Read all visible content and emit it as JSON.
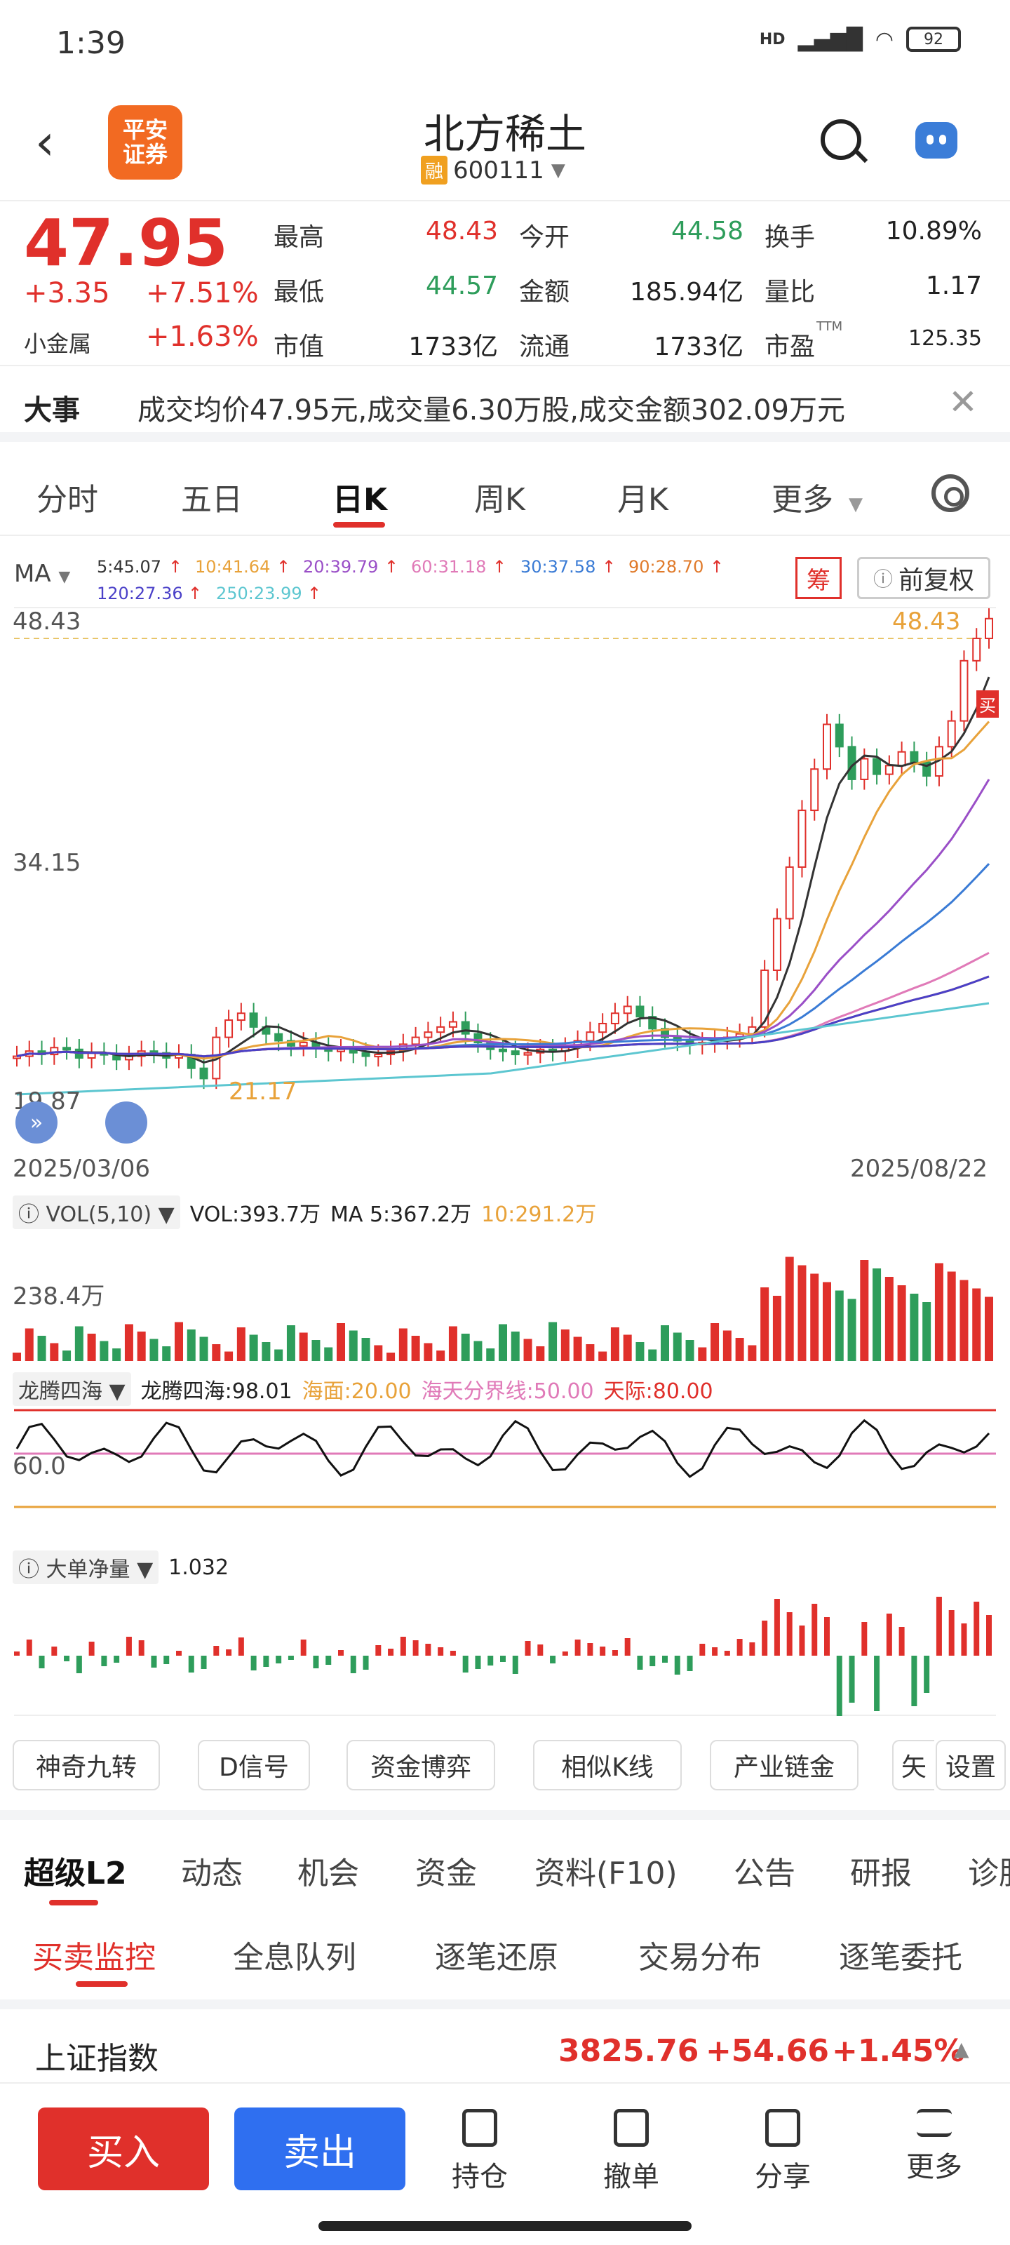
{
  "status": {
    "time": "1:39",
    "battery": "92",
    "signal_label": "HD"
  },
  "header": {
    "logo_line1": "平安",
    "logo_line2": "证券",
    "stock_name": "北方稀土",
    "margin_tag": "融",
    "code": "600111"
  },
  "quote": {
    "price": "47.95",
    "change": "+3.35",
    "change_pct": "+7.51%",
    "sector_name": "小金属",
    "sector_pct": "+1.63%",
    "fields": [
      {
        "label": "最高",
        "value": "48.43",
        "color": "red"
      },
      {
        "label": "今开",
        "value": "44.58",
        "color": "green"
      },
      {
        "label": "换手",
        "value": "10.89%",
        "color": "dark"
      },
      {
        "label": "最低",
        "value": "44.57",
        "color": "green"
      },
      {
        "label": "金额",
        "value": "185.94亿",
        "color": "dark"
      },
      {
        "label": "量比",
        "value": "1.17",
        "color": "dark"
      },
      {
        "label": "市值",
        "value": "1733亿",
        "color": "dark"
      },
      {
        "label": "流通",
        "value": "1733亿",
        "color": "dark"
      },
      {
        "label": "市盈",
        "value": "125.35",
        "color": "dark"
      }
    ],
    "pe_sup": "TTM"
  },
  "events": {
    "tag": "大事",
    "text": "成交均价47.95元,成交量6.30万股,成交金额302.09万元"
  },
  "ktabs": [
    "分时",
    "五日",
    "日K",
    "周K",
    "月K",
    "更多"
  ],
  "chart": {
    "ma_label": "MA",
    "ma_legend": [
      {
        "text": "5:45.07",
        "color": "#333333"
      },
      {
        "text": "10:41.64",
        "color": "#e8a23a"
      },
      {
        "text": "20:39.79",
        "color": "#9a4fc7"
      },
      {
        "text": "60:31.18",
        "color": "#e07ab8"
      },
      {
        "text": "30:37.58",
        "color": "#3a7bd5"
      },
      {
        "text": "90:28.70",
        "color": "#e07a2a"
      },
      {
        "text": "120:27.36",
        "color": "#4a40c8"
      },
      {
        "text": "250:23.99",
        "color": "#5cc6d0"
      }
    ],
    "chou_label": "筹",
    "fuquan_label": "前复权",
    "y_high": "48.43",
    "y_mid": "34.15",
    "y_low": "19.87",
    "high_marker": "48.43",
    "low_marker": "21.17",
    "buy_marker": "买",
    "date_start": "2025/03/06",
    "date_end": "2025/08/22",
    "vol_title": "VOL(5,10)",
    "vol_value": "VOL:393.7万",
    "vol_ma5": "MA 5:367.2万",
    "vol_ma10": "10:291.2万",
    "vol_axis": "238.4万",
    "ind_title": "龙腾四海",
    "ind_value": "龙腾四海:98.01",
    "ind_a": "海面:20.00",
    "ind_b": "海天分界线:50.00",
    "ind_c": "天际:80.00",
    "ind_axis": "60.0",
    "flow_title": "大单净量",
    "flow_value": "1.032",
    "colors": {
      "up": "#e0302b",
      "down": "#2e9d5b"
    }
  },
  "chart_data": {
    "type": "candlestick",
    "x_range": [
      "2025/03/06",
      "2025/08/22"
    ],
    "ylim": [
      19.87,
      48.43
    ],
    "close_series": [
      22.5,
      22.8,
      22.6,
      23.0,
      22.9,
      22.4,
      22.7,
      22.6,
      22.3,
      22.5,
      22.8,
      22.7,
      22.4,
      22.6,
      21.8,
      21.2,
      23.6,
      24.6,
      25.0,
      24.2,
      23.8,
      23.4,
      23.1,
      23.3,
      23.0,
      22.8,
      22.9,
      22.7,
      22.5,
      22.6,
      22.8,
      23.2,
      23.6,
      23.9,
      24.2,
      24.5,
      23.8,
      23.3,
      22.9,
      22.8,
      22.6,
      22.7,
      22.9,
      22.8,
      23.0,
      23.4,
      23.9,
      24.4,
      25.0,
      25.4,
      24.8,
      24.1,
      23.6,
      23.4,
      23.2,
      23.3,
      23.5,
      23.6,
      23.8,
      24.2,
      27.5,
      30.5,
      33.5,
      36.8,
      39.2,
      41.8,
      40.5,
      38.6,
      39.8,
      38.9,
      39.4,
      40.2,
      39.6,
      38.8,
      40.5,
      42.0,
      45.5,
      46.8,
      47.95
    ]
  },
  "features": [
    "神奇九转",
    "D信号",
    "资金博弈",
    "相似K线",
    "产业链金",
    "矢",
    "设置"
  ],
  "l2tabs": [
    "超级L2",
    "动态",
    "机会",
    "资金",
    "资料(F10)",
    "公告",
    "研报",
    "诊股"
  ],
  "subtabs": [
    "买卖监控",
    "全息队列",
    "逐笔还原",
    "交易分布",
    "逐笔委托"
  ],
  "index": {
    "name": "上证指数",
    "value": "3825.76",
    "change": "+54.66",
    "pct": "+1.45%"
  },
  "bottom": {
    "buy": "买入",
    "sell": "卖出",
    "nav": [
      "持仓",
      "撤单",
      "分享",
      "更多"
    ]
  }
}
